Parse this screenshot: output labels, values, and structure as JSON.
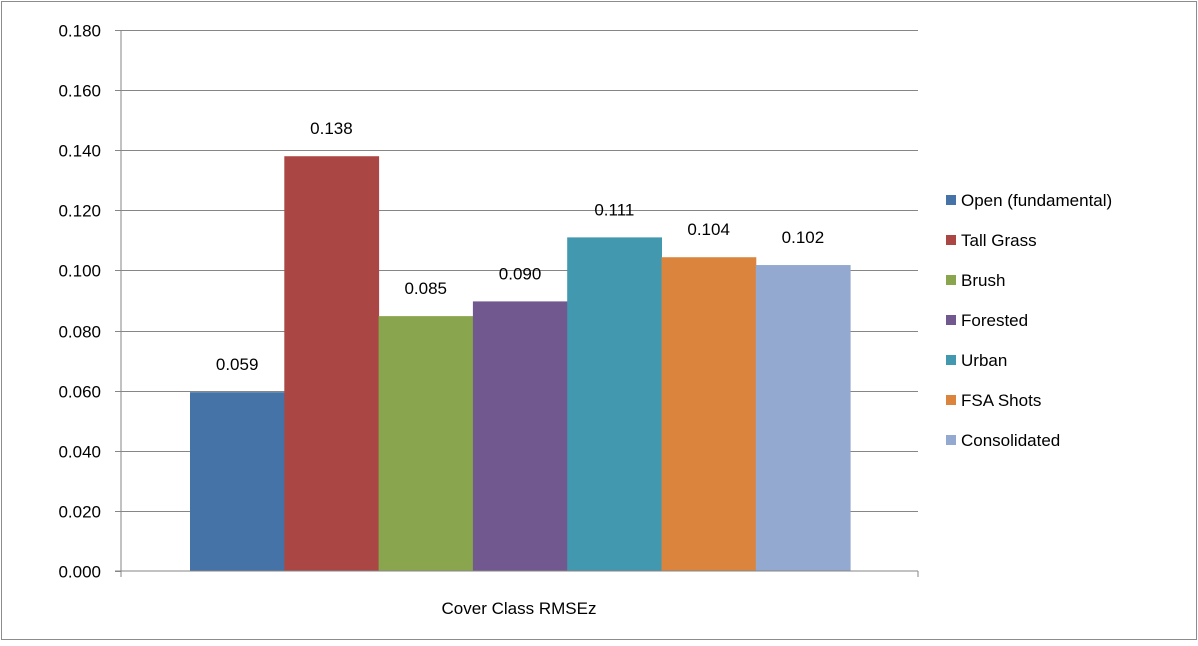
{
  "chart_data": {
    "type": "bar",
    "xlabel": "Cover Class RMSEz",
    "ylim": [
      0,
      0.18
    ],
    "yticks": [
      "0.000",
      "0.020",
      "0.040",
      "0.060",
      "0.080",
      "0.100",
      "0.120",
      "0.140",
      "0.160",
      "0.180"
    ],
    "grid": true,
    "legend_position": "right",
    "series": [
      {
        "name": "Open (fundamental)",
        "value": 0.0595,
        "label": "0.059",
        "color": "#4572a7"
      },
      {
        "name": "Tall Grass",
        "value": 0.138,
        "label": "0.138",
        "color": "#aa4643"
      },
      {
        "name": "Brush",
        "value": 0.0848,
        "label": "0.085",
        "color": "#89a54e"
      },
      {
        "name": "Forested",
        "value": 0.0897,
        "label": "0.090",
        "color": "#71588f"
      },
      {
        "name": "Urban",
        "value": 0.111,
        "label": "0.111",
        "color": "#4198af"
      },
      {
        "name": "FSA Shots",
        "value": 0.1044,
        "label": "0.104",
        "color": "#db843d"
      },
      {
        "name": "Consolidated",
        "value": 0.1018,
        "label": "0.102",
        "color": "#93a9cf"
      }
    ]
  }
}
